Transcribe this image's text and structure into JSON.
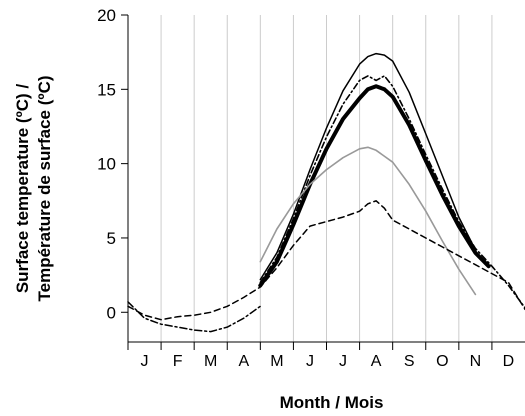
{
  "chart_data": {
    "type": "line",
    "xlabel": "Month / Mois",
    "ylabel_line1": "Surface temperature (ºC) /",
    "ylabel_line2": "Température de surface (ºC)",
    "x_ticks": [
      "J",
      "F",
      "M",
      "A",
      "M",
      "J",
      "J",
      "A",
      "S",
      "O",
      "N",
      "D"
    ],
    "xlim": [
      0.5,
      12.5
    ],
    "ylim": [
      -2,
      20
    ],
    "y_ticks": [
      0,
      5,
      10,
      15,
      20
    ],
    "grid": "vertical",
    "legend": "none",
    "series": [
      {
        "style": "thin-solid",
        "color": "#000000",
        "x": [
          4.5,
          5,
          5.5,
          6,
          6.5,
          7,
          7.5,
          7.75,
          8,
          8.25,
          8.5,
          9,
          9.5,
          10,
          10.5,
          11
        ],
        "y": [
          2.2,
          4.0,
          6.6,
          9.6,
          12.4,
          14.9,
          16.7,
          17.2,
          17.4,
          17.3,
          16.9,
          14.8,
          12.0,
          9.2,
          6.4,
          4.2
        ]
      },
      {
        "style": "thick-solid",
        "color": "#000000",
        "x": [
          4.5,
          5,
          5.5,
          6,
          6.5,
          7,
          7.5,
          7.75,
          8,
          8.25,
          8.5,
          9,
          9.5,
          10,
          10.5,
          11,
          11.4
        ],
        "y": [
          1.8,
          3.4,
          5.9,
          8.6,
          11.0,
          13.0,
          14.4,
          15.0,
          15.2,
          15.0,
          14.5,
          12.6,
          10.2,
          7.9,
          5.8,
          4.0,
          3.1
        ]
      },
      {
        "style": "dash-dot",
        "color": "#000000",
        "x": [
          4.5,
          5,
          5.5,
          6,
          6.5,
          7,
          7.5,
          7.75,
          8,
          8.25,
          8.5,
          9,
          9.5,
          10,
          10.5,
          11,
          11.5,
          12,
          12.5
        ],
        "y": [
          2.0,
          3.7,
          6.3,
          9.2,
          11.8,
          14.0,
          15.6,
          15.9,
          15.6,
          15.9,
          15.2,
          13.0,
          10.6,
          8.3,
          6.1,
          4.3,
          3.1,
          1.8,
          0.3
        ]
      },
      {
        "style": "gray-solid",
        "color": "#999999",
        "x": [
          4.5,
          5,
          5.5,
          6,
          6.5,
          7,
          7.5,
          7.75,
          8,
          8.5,
          9,
          9.5,
          10,
          10.5,
          11
        ],
        "y": [
          3.4,
          5.6,
          7.3,
          8.6,
          9.6,
          10.4,
          11.0,
          11.1,
          10.9,
          10.1,
          8.6,
          6.8,
          4.8,
          2.9,
          1.2
        ]
      },
      {
        "style": "dashed",
        "color": "#000000",
        "x": [
          0.5,
          1,
          1.5,
          2,
          2.5,
          3,
          3.5,
          4,
          4.5,
          5,
          5.5,
          6,
          6.5,
          7,
          7.5,
          7.75,
          8,
          8.25,
          8.5,
          9,
          9.5,
          10,
          10.5,
          11,
          11.5,
          12,
          12.5
        ],
        "y": [
          0.4,
          -0.2,
          -0.5,
          -0.3,
          -0.2,
          0.0,
          0.4,
          1.0,
          1.7,
          3.0,
          4.5,
          5.8,
          6.1,
          6.4,
          6.8,
          7.3,
          7.5,
          7.0,
          6.2,
          5.6,
          5.0,
          4.4,
          3.8,
          3.2,
          2.6,
          2.0,
          0.2
        ]
      },
      {
        "style": "dash-dot-winter",
        "color": "#000000",
        "x": [
          0.5,
          1,
          1.5,
          2,
          2.5,
          3,
          3.5,
          4,
          4.5
        ],
        "y": [
          0.7,
          -0.4,
          -0.8,
          -1.0,
          -1.2,
          -1.3,
          -1.0,
          -0.4,
          0.4
        ]
      }
    ]
  }
}
